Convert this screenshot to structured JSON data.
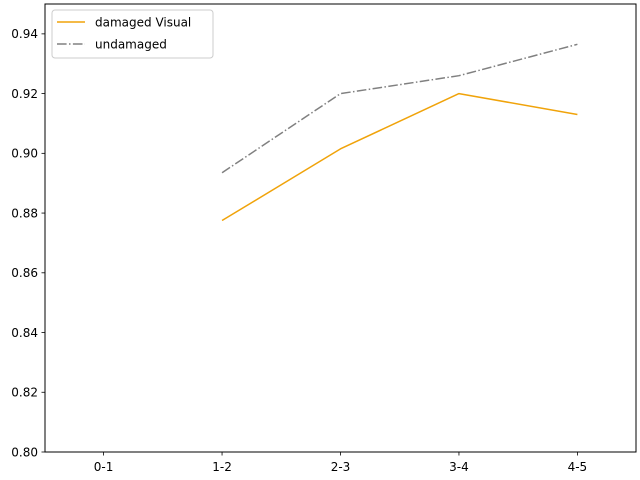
{
  "chart_data": {
    "type": "line",
    "title": "",
    "xlabel": "",
    "ylabel": "",
    "categories": [
      "0-1",
      "1-2",
      "2-3",
      "3-4",
      "4-5"
    ],
    "ylim": [
      0.8,
      0.95
    ],
    "yticks": [
      "0.80",
      "0.82",
      "0.84",
      "0.86",
      "0.88",
      "0.90",
      "0.92",
      "0.94"
    ],
    "grid": false,
    "legend_position": "top-left",
    "series": [
      {
        "name": "damaged Visual",
        "color": "#f0a30a",
        "style": "solid",
        "values": [
          null,
          0.8775,
          0.9015,
          0.92,
          0.913
        ]
      },
      {
        "name": "undamaged",
        "color": "#808080",
        "style": "dashdot",
        "values": [
          null,
          0.8935,
          0.92,
          0.926,
          0.9365
        ]
      }
    ]
  }
}
